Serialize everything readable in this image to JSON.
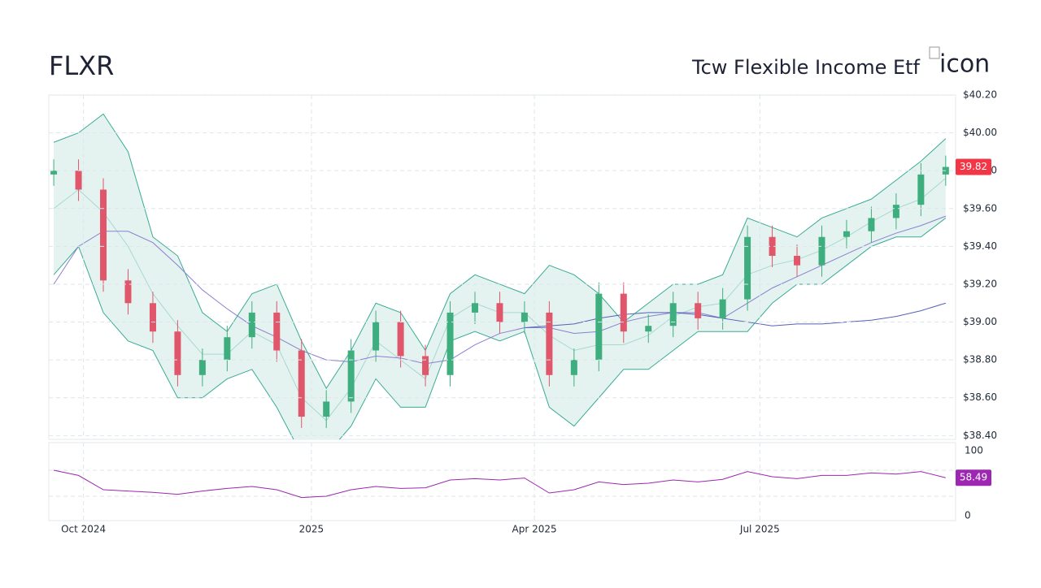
{
  "chart_data": {
    "type": "candlestick",
    "title": "FLXR",
    "subtitle": "Tcw Flexible Income Etf",
    "icon_alt": "icon",
    "xlim": [
      0,
      366
    ],
    "xticks": [
      {
        "value": 14,
        "label": "Oct 2024"
      },
      {
        "value": 106,
        "label": "2025"
      },
      {
        "value": 196,
        "label": "Apr 2025"
      },
      {
        "value": 287,
        "label": "Jul 2025"
      }
    ],
    "ylim": [
      38.38,
      40.2
    ],
    "yticks": [
      {
        "value": 38.4,
        "label": "$38.40"
      },
      {
        "value": 38.6,
        "label": "$38.60"
      },
      {
        "value": 38.8,
        "label": "$38.80"
      },
      {
        "value": 39,
        "label": "$39.00"
      },
      {
        "value": 39.2,
        "label": "$39.20"
      },
      {
        "value": 39.4,
        "label": "$39.40"
      },
      {
        "value": 39.6,
        "label": "$39.60"
      },
      {
        "value": 39.8,
        "label": "$39.80"
      },
      {
        "value": 40,
        "label": "$40.00"
      },
      {
        "value": 40.2,
        "label": "$40.20"
      }
    ],
    "grid": true,
    "x": [
      2,
      12,
      22,
      32,
      42,
      52,
      62,
      72,
      82,
      92,
      102,
      112,
      122,
      132,
      142,
      152,
      162,
      172,
      182,
      192,
      202,
      212,
      222,
      232,
      242,
      252,
      262,
      272,
      282,
      292,
      302,
      312,
      322,
      332,
      342,
      352,
      362
    ],
    "open": [
      39.78,
      39.8,
      39.7,
      39.22,
      39.1,
      38.95,
      38.72,
      38.8,
      38.92,
      39.05,
      38.85,
      38.5,
      38.58,
      38.85,
      39.0,
      38.82,
      38.72,
      39.05,
      39.1,
      39.0,
      39.05,
      38.72,
      38.8,
      39.15,
      38.95,
      38.98,
      39.1,
      39.02,
      39.12,
      39.45,
      39.35,
      39.3,
      39.45,
      39.48,
      39.55,
      39.62,
      39.78
    ],
    "high": [
      39.86,
      39.86,
      39.76,
      39.28,
      39.16,
      39.01,
      38.86,
      38.98,
      39.11,
      39.11,
      38.91,
      38.64,
      38.91,
      39.06,
      39.06,
      38.88,
      39.11,
      39.16,
      39.16,
      39.11,
      39.11,
      38.86,
      39.21,
      39.21,
      39.04,
      39.16,
      39.16,
      39.18,
      39.51,
      39.51,
      39.41,
      39.51,
      39.54,
      39.61,
      39.68,
      39.84,
      39.88
    ],
    "low": [
      39.72,
      39.64,
      39.16,
      39.04,
      38.89,
      38.66,
      38.66,
      38.74,
      38.86,
      38.79,
      38.44,
      38.44,
      38.52,
      38.79,
      38.76,
      38.66,
      38.66,
      38.99,
      38.94,
      38.94,
      38.66,
      38.66,
      38.74,
      38.89,
      38.89,
      38.92,
      38.96,
      38.96,
      39.06,
      39.29,
      39.24,
      39.24,
      39.39,
      39.42,
      39.49,
      39.56,
      39.72
    ],
    "close": [
      39.8,
      39.7,
      39.22,
      39.1,
      38.95,
      38.72,
      38.8,
      38.92,
      39.05,
      38.85,
      38.5,
      38.58,
      38.85,
      39.0,
      38.82,
      38.72,
      39.05,
      39.1,
      39.0,
      39.05,
      38.72,
      38.8,
      39.15,
      38.95,
      38.98,
      39.1,
      39.02,
      39.12,
      39.45,
      39.35,
      39.3,
      39.45,
      39.48,
      39.55,
      39.62,
      39.78,
      39.82
    ],
    "up_color": "#3fae7f",
    "down_color": "#e0566a",
    "bands": {
      "color": "#3aab95",
      "fill": "#e4f3f0",
      "upper": [
        39.95,
        40.0,
        40.1,
        39.9,
        39.45,
        39.35,
        39.05,
        38.95,
        39.15,
        39.2,
        38.9,
        38.65,
        38.85,
        39.1,
        39.05,
        38.85,
        39.15,
        39.25,
        39.2,
        39.15,
        39.3,
        39.25,
        39.15,
        39.0,
        39.1,
        39.2,
        39.2,
        39.25,
        39.55,
        39.5,
        39.45,
        39.55,
        39.6,
        39.65,
        39.75,
        39.85,
        39.97
      ],
      "lower": [
        39.25,
        39.4,
        39.05,
        38.9,
        38.85,
        38.6,
        38.6,
        38.7,
        38.75,
        38.55,
        38.3,
        38.3,
        38.45,
        38.7,
        38.55,
        38.55,
        38.9,
        38.95,
        38.9,
        38.95,
        38.55,
        38.45,
        38.6,
        38.75,
        38.75,
        38.85,
        38.95,
        38.95,
        38.95,
        39.1,
        39.2,
        39.2,
        39.3,
        39.4,
        39.45,
        39.45,
        39.55
      ],
      "middle": [
        39.6,
        39.7,
        39.58,
        39.4,
        39.15,
        38.98,
        38.83,
        38.83,
        38.95,
        38.88,
        38.6,
        38.48,
        38.65,
        38.9,
        38.8,
        38.7,
        39.02,
        39.1,
        39.05,
        39.05,
        38.93,
        38.85,
        38.88,
        38.88,
        38.93,
        39.03,
        39.08,
        39.1,
        39.25,
        39.3,
        39.33,
        39.38,
        39.45,
        39.53,
        39.6,
        39.65,
        39.76
      ]
    },
    "lines": [
      {
        "color": "#8a7fd1",
        "values": [
          39.2,
          39.4,
          39.48,
          39.48,
          39.42,
          39.3,
          39.17,
          39.07,
          38.98,
          38.92,
          38.85,
          38.8,
          38.79,
          38.82,
          38.81,
          38.78,
          38.8,
          38.88,
          38.94,
          38.97,
          38.97,
          38.94,
          38.95,
          39.0,
          39.03,
          39.05,
          39.05,
          39.02,
          39.1,
          39.18,
          39.24,
          39.3,
          39.36,
          39.42,
          39.47,
          39.51,
          39.56
        ]
      },
      {
        "color": "#5560b8",
        "values": [
          null,
          null,
          null,
          null,
          null,
          null,
          null,
          null,
          null,
          null,
          null,
          null,
          null,
          null,
          null,
          null,
          null,
          null,
          null,
          38.97,
          38.98,
          38.99,
          39.02,
          39.04,
          39.05,
          39.05,
          39.04,
          39.02,
          39.0,
          38.98,
          38.99,
          38.99,
          39.0,
          39.01,
          39.03,
          39.06,
          39.1
        ]
      }
    ],
    "last_price": 39.82,
    "last_price_color": "#f23645",
    "rsi": {
      "color": "#9c27b0",
      "ylim": [
        -7.5,
        112.5
      ],
      "yticks": [
        0,
        100
      ],
      "guides": [
        70,
        30
      ],
      "values": [
        70,
        62,
        40,
        38,
        36,
        33,
        38,
        42,
        45,
        40,
        28,
        30,
        40,
        45,
        42,
        43,
        55,
        57,
        55,
        58,
        35,
        40,
        52,
        48,
        50,
        55,
        52,
        56,
        68,
        60,
        57,
        62,
        62,
        66,
        64,
        68,
        58.49
      ]
    }
  }
}
